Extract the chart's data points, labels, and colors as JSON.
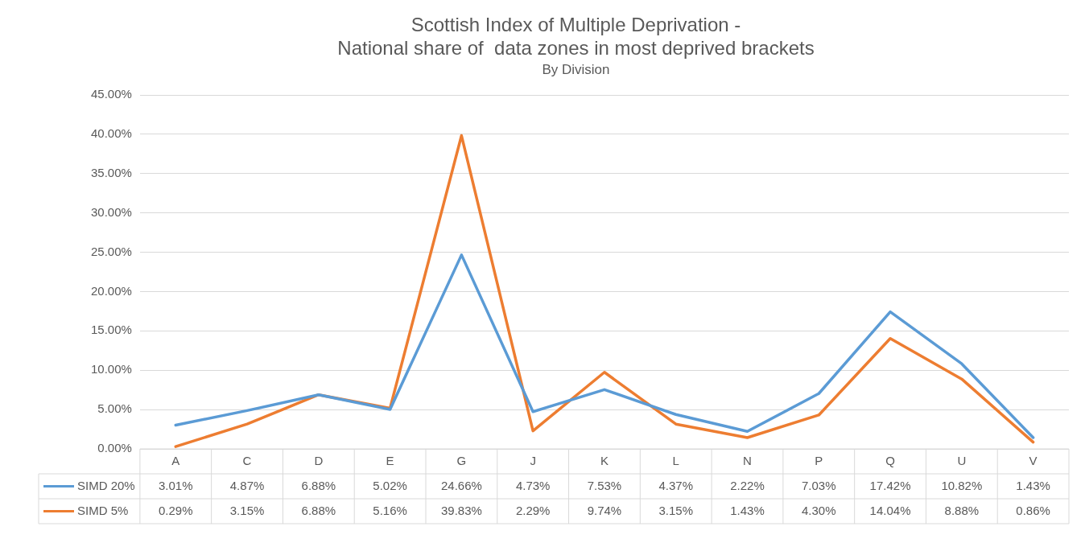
{
  "chart_data": {
    "type": "line",
    "title": [
      "Scottish Index of Multiple Deprivation -",
      "National share of  data zones in most deprived brackets"
    ],
    "subtitle": "By Division",
    "categories": [
      "A",
      "C",
      "D",
      "E",
      "G",
      "J",
      "K",
      "L",
      "N",
      "P",
      "Q",
      "U",
      "V"
    ],
    "series": [
      {
        "name": "SIMD 20%",
        "color": "#5b9bd5",
        "values": [
          3.01,
          4.87,
          6.88,
          5.02,
          24.66,
          4.73,
          7.53,
          4.37,
          2.22,
          7.03,
          17.42,
          10.82,
          1.43
        ],
        "value_labels": [
          "3.01%",
          "4.87%",
          "6.88%",
          "5.02%",
          "24.66%",
          "4.73%",
          "7.53%",
          "4.37%",
          "2.22%",
          "7.03%",
          "17.42%",
          "10.82%",
          "1.43%"
        ]
      },
      {
        "name": "SIMD 5%",
        "color": "#ed7d31",
        "values": [
          0.29,
          3.15,
          6.88,
          5.16,
          39.83,
          2.29,
          9.74,
          3.15,
          1.43,
          4.3,
          14.04,
          8.88,
          0.86
        ],
        "value_labels": [
          "0.29%",
          "3.15%",
          "6.88%",
          "5.16%",
          "39.83%",
          "2.29%",
          "9.74%",
          "3.15%",
          "1.43%",
          "4.30%",
          "14.04%",
          "8.88%",
          "0.86%"
        ]
      }
    ],
    "ylim": [
      0,
      45
    ],
    "yticks": [
      {
        "value": 0,
        "label": "0.00%"
      },
      {
        "value": 5,
        "label": "5.00%"
      },
      {
        "value": 10,
        "label": "10.00%"
      },
      {
        "value": 15,
        "label": "15.00%"
      },
      {
        "value": 20,
        "label": "20.00%"
      },
      {
        "value": 25,
        "label": "25.00%"
      },
      {
        "value": 30,
        "label": "30.00%"
      },
      {
        "value": 35,
        "label": "35.00%"
      },
      {
        "value": 40,
        "label": "40.00%"
      },
      {
        "value": 45,
        "label": "45.00%"
      }
    ],
    "grid": "y",
    "legend": "bottom",
    "marker": "none",
    "line_style": "solid"
  }
}
